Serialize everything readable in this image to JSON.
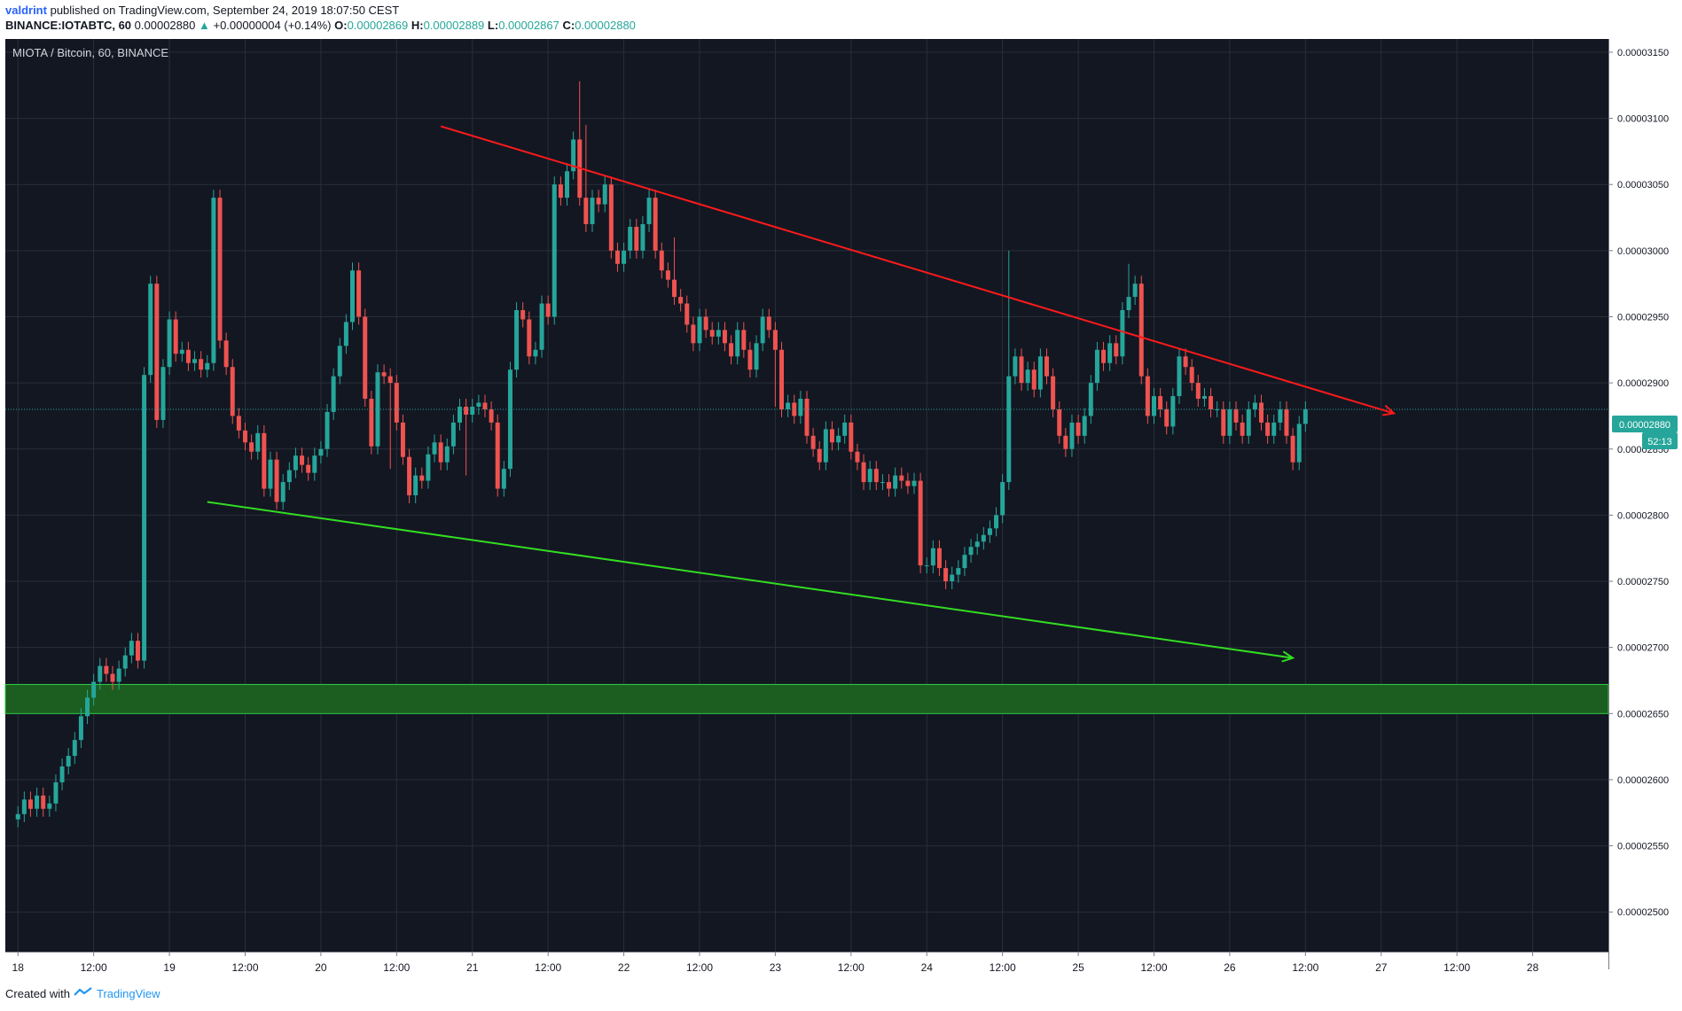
{
  "header": {
    "author": "valdrint",
    "published": "published on TradingView.com, September 24, 2019 18:07:50 CEST",
    "symbol": "BINANCE:IOTABTC, 60",
    "last": "0.00002880",
    "change": "+0.00000004 (+0.14%)",
    "o_label": "O:",
    "o": "0.00002869",
    "h_label": "H:",
    "h": "0.00002889",
    "l_label": "L:",
    "l": "0.00002867",
    "c_label": "C:",
    "c": "0.00002880"
  },
  "pane_title": "MIOTA / Bitcoin, 60, BINANCE",
  "price_badge": "0.00002880",
  "countdown": "52:13",
  "footer": {
    "created": "Created with",
    "brand": "TradingView"
  },
  "colors": {
    "background": "#131722",
    "grid": "#2a2e39",
    "up": "#26a69a",
    "down": "#ef5350",
    "resistance": "#ff1a1a",
    "support": "#33dd22",
    "zone": "#1b5e20"
  },
  "chart_data": {
    "type": "candlestick",
    "y_ticks": [
      "0.00003150",
      "0.00003100",
      "0.00003050",
      "0.00003000",
      "0.00002950",
      "0.00002900",
      "0.00002850",
      "0.00002800",
      "0.00002750",
      "0.00002700",
      "0.00002650",
      "0.00002600",
      "0.00002550",
      "0.00002500"
    ],
    "ylim": [
      2.47e-05,
      3.16e-05
    ],
    "x_ticks": [
      "18",
      "12:00",
      "19",
      "12:00",
      "20",
      "12:00",
      "21",
      "12:00",
      "22",
      "12:00",
      "23",
      "12:00",
      "24",
      "12:00",
      "25",
      "12:00",
      "26",
      "12:00",
      "27",
      "12:00",
      "28"
    ],
    "x_range_hours": [
      -2,
      252
    ],
    "candle_interval_hours": 1,
    "closes": [
      2.574e-05,
      2.585e-05,
      2.578e-05,
      2.588e-05,
      2.578e-05,
      2.582e-05,
      2.598e-05,
      2.61e-05,
      2.618e-05,
      2.63e-05,
      2.648e-05,
      2.662e-05,
      2.674e-05,
      2.686e-05,
      2.68e-05,
      2.674e-05,
      2.684e-05,
      2.694e-05,
      2.705e-05,
      2.69e-05,
      2.906e-05,
      2.975e-05,
      2.872e-05,
      2.912e-05,
      2.948e-05,
      2.922e-05,
      2.925e-05,
      2.915e-05,
      2.918e-05,
      2.91e-05,
      2.915e-05,
      3.04e-05,
      2.932e-05,
      2.912e-05,
      2.875e-05,
      2.864e-05,
      2.855e-05,
      2.848e-05,
      2.862e-05,
      2.82e-05,
      2.842e-05,
      2.81e-05,
      2.825e-05,
      2.834e-05,
      2.845e-05,
      2.838e-05,
      2.832e-05,
      2.845e-05,
      2.85e-05,
      2.878e-05,
      2.905e-05,
      2.928e-05,
      2.946e-05,
      2.985e-05,
      2.95e-05,
      2.888e-05,
      2.852e-05,
      2.908e-05,
      2.905e-05,
      2.9e-05,
      2.87e-05,
      2.844e-05,
      2.815e-05,
      2.83e-05,
      2.826e-05,
      2.846e-05,
      2.855e-05,
      2.84e-05,
      2.852e-05,
      2.87e-05,
      2.882e-05,
      2.876e-05,
      2.882e-05,
      2.885e-05,
      2.88e-05,
      2.87e-05,
      2.82e-05,
      2.835e-05,
      2.91e-05,
      2.955e-05,
      2.948e-05,
      2.92e-05,
      2.925e-05,
      2.96e-05,
      2.95e-05,
      3.05e-05,
      3.04e-05,
      3.06e-05,
      3.084e-05,
      3.04e-05,
      3.02e-05,
      3.04e-05,
      3.035e-05,
      3.05e-05,
      3e-05,
      2.99e-05,
      3e-05,
      3.018e-05,
      3e-05,
      3.02e-05,
      3.04e-05,
      3e-05,
      2.985e-05,
      2.978e-05,
      2.965e-05,
      2.96e-05,
      2.944e-05,
      2.93e-05,
      2.95e-05,
      2.94e-05,
      2.935e-05,
      2.94e-05,
      2.93e-05,
      2.92e-05,
      2.94e-05,
      2.925e-05,
      2.91e-05,
      2.93e-05,
      2.95e-05,
      2.94e-05,
      2.925e-05,
      2.88e-05,
      2.885e-05,
      2.875e-05,
      2.888e-05,
      2.86e-05,
      2.85e-05,
      2.84e-05,
      2.865e-05,
      2.855e-05,
      2.86e-05,
      2.87e-05,
      2.848e-05,
      2.84e-05,
      2.825e-05,
      2.835e-05,
      2.825e-05,
      2.825e-05,
      2.82e-05,
      2.83e-05,
      2.826e-05,
      2.822e-05,
      2.826e-05,
      2.762e-05,
      2.762e-05,
      2.775e-05,
      2.76e-05,
      2.75e-05,
      2.755e-05,
      2.76e-05,
      2.77e-05,
      2.776e-05,
      2.78e-05,
      2.785e-05,
      2.79e-05,
      2.8e-05,
      2.825e-05,
      2.905e-05,
      2.92e-05,
      2.9e-05,
      2.91e-05,
      2.895e-05,
      2.92e-05,
      2.905e-05,
      2.88e-05,
      2.86e-05,
      2.85e-05,
      2.87e-05,
      2.86e-05,
      2.875e-05,
      2.9e-05,
      2.925e-05,
      2.915e-05,
      2.93e-05,
      2.92e-05,
      2.955e-05,
      2.965e-05,
      2.975e-05,
      2.905e-05,
      2.875e-05,
      2.89e-05,
      2.88e-05,
      2.867e-05,
      2.89e-05,
      2.92e-05,
      2.912e-05,
      2.9e-05,
      2.888e-05,
      2.89e-05,
      2.88e-05,
      2.88e-05,
      2.86e-05,
      2.88e-05,
      2.87e-05,
      2.86e-05,
      2.88e-05,
      2.885e-05,
      2.87e-05,
      2.86e-05,
      2.87e-05,
      2.88e-05,
      2.86e-05,
      2.84e-05,
      2.869e-05,
      2.88e-05
    ],
    "wicks": [
      [
        20,
        2840
      ],
      [
        41,
        2830
      ],
      [
        59,
        2835
      ],
      [
        71,
        2830
      ],
      [
        89,
        3128
      ],
      [
        90,
        3095
      ],
      [
        96,
        2988
      ],
      [
        104,
        3010
      ],
      [
        120,
        2882
      ],
      [
        157,
        3000
      ],
      [
        176,
        2990
      ],
      [
        178,
        2958
      ],
      [
        219,
        2800
      ],
      [
        220,
        2845
      ]
    ],
    "resistance_line": {
      "from": [
        67,
        3.094e-05
      ],
      "to": [
        218,
        2.877e-05
      ],
      "style": "arrow"
    },
    "support_line": {
      "from": [
        30,
        2.81e-05
      ],
      "to": [
        202,
        2.692e-05
      ],
      "style": "arrow"
    },
    "support_zone": [
      2.65e-05,
      2.672e-05
    ],
    "last_price": 2.88e-05
  }
}
